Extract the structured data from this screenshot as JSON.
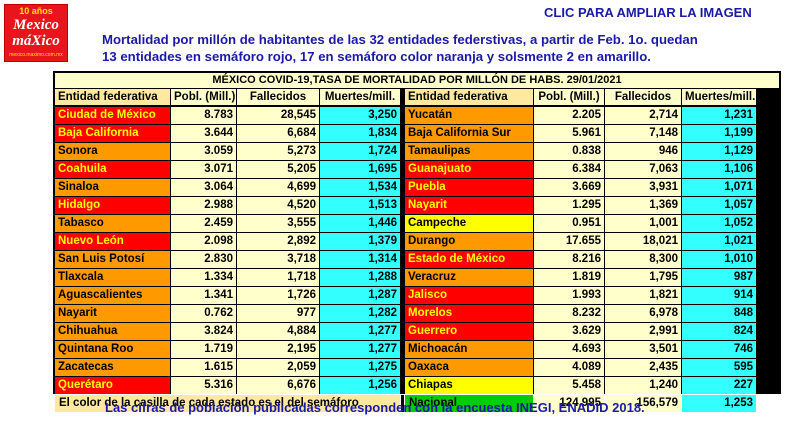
{
  "logo": {
    "years": "10 años",
    "line1": "Mexico",
    "line2": "máXico",
    "tagline": "mexico.maximo.com.mx"
  },
  "cta": "CLIC PARA AMPLIAR LA IMAGEN",
  "intro": [
    "Mortalidad por millón de habitantes de las 32 entidades federstivas, a partir de Feb. 1o. quedan",
    "13 entidades en semáforo rojo, 17 en semáforo color naranja y solsmente 2 en amarillo."
  ],
  "table": {
    "title": "MÉXICO COVID-19,TASA DE MORTALIDAD POR MILLÓN DE HABS.    29/01/2021",
    "headers": [
      "Entidad federativa",
      "Pobl. (Mill.)",
      "Fallecidos",
      "Muertes/mill."
    ],
    "left": [
      {
        "name": "Ciudad de México",
        "pop": "8.783",
        "deaths": "28,545",
        "rate": "3,250",
        "light": "red"
      },
      {
        "name": "Baja California",
        "pop": "3.644",
        "deaths": "6,684",
        "rate": "1,834",
        "light": "red"
      },
      {
        "name": "Sonora",
        "pop": "3.059",
        "deaths": "5,273",
        "rate": "1,724",
        "light": "orange"
      },
      {
        "name": "Coahuila",
        "pop": "3.071",
        "deaths": "5,205",
        "rate": "1,695",
        "light": "red"
      },
      {
        "name": "Sinaloa",
        "pop": "3.064",
        "deaths": "4,699",
        "rate": "1,534",
        "light": "orange"
      },
      {
        "name": "Hidalgo",
        "pop": "2.988",
        "deaths": "4,520",
        "rate": "1,513",
        "light": "red"
      },
      {
        "name": "Tabasco",
        "pop": "2.459",
        "deaths": "3,555",
        "rate": "1,446",
        "light": "orange"
      },
      {
        "name": "Nuevo León",
        "pop": "2.098",
        "deaths": "2,892",
        "rate": "1,379",
        "light": "red"
      },
      {
        "name": "San Luis Potosí",
        "pop": "2.830",
        "deaths": "3,718",
        "rate": "1,314",
        "light": "orange"
      },
      {
        "name": "Tlaxcala",
        "pop": "1.334",
        "deaths": "1,718",
        "rate": "1,288",
        "light": "orange"
      },
      {
        "name": "Aguascalientes",
        "pop": "1.341",
        "deaths": "1,726",
        "rate": "1,287",
        "light": "orange"
      },
      {
        "name": "Nayarit",
        "pop": "0.762",
        "deaths": "977",
        "rate": "1,282",
        "light": "orange"
      },
      {
        "name": "Chihuahua",
        "pop": "3.824",
        "deaths": "4,884",
        "rate": "1,277",
        "light": "orange"
      },
      {
        "name": "Quintana Roo",
        "pop": "1.719",
        "deaths": "2,195",
        "rate": "1,277",
        "light": "orange"
      },
      {
        "name": "Zacatecas",
        "pop": "1.615",
        "deaths": "2,059",
        "rate": "1,275",
        "light": "orange"
      },
      {
        "name": "Querétaro",
        "pop": "5.316",
        "deaths": "6,676",
        "rate": "1,256",
        "light": "red"
      }
    ],
    "right": [
      {
        "name": "Yucatán",
        "pop": "2.205",
        "deaths": "2,714",
        "rate": "1,231",
        "light": "orange"
      },
      {
        "name": "Baja California Sur",
        "pop": "5.961",
        "deaths": "7,148",
        "rate": "1,199",
        "light": "orange"
      },
      {
        "name": "Tamaulipas",
        "pop": "0.838",
        "deaths": "946",
        "rate": "1,129",
        "light": "orange"
      },
      {
        "name": "Guanajuato",
        "pop": "6.384",
        "deaths": "7,063",
        "rate": "1,106",
        "light": "red"
      },
      {
        "name": "Puebla",
        "pop": "3.669",
        "deaths": "3,931",
        "rate": "1,071",
        "light": "red"
      },
      {
        "name": "Nayarit",
        "pop": "1.295",
        "deaths": "1,369",
        "rate": "1,057",
        "light": "red"
      },
      {
        "name": "Campeche",
        "pop": "0.951",
        "deaths": "1,001",
        "rate": "1,052",
        "light": "yellow"
      },
      {
        "name": "Durango",
        "pop": "17.655",
        "deaths": "18,021",
        "rate": "1,021",
        "light": "orange"
      },
      {
        "name": "Estado de México",
        "pop": "8.216",
        "deaths": "8,300",
        "rate": "1,010",
        "light": "red"
      },
      {
        "name": "Veracruz",
        "pop": "1.819",
        "deaths": "1,795",
        "rate": "987",
        "light": "orange"
      },
      {
        "name": "Jalisco",
        "pop": "1.993",
        "deaths": "1,821",
        "rate": "914",
        "light": "red"
      },
      {
        "name": "Morelos",
        "pop": "8.232",
        "deaths": "6,978",
        "rate": "848",
        "light": "red"
      },
      {
        "name": "Guerrero",
        "pop": "3.629",
        "deaths": "2,991",
        "rate": "824",
        "light": "red"
      },
      {
        "name": "Michoacán",
        "pop": "4.693",
        "deaths": "3,501",
        "rate": "746",
        "light": "orange"
      },
      {
        "name": "Oaxaca",
        "pop": "4.089",
        "deaths": "2,435",
        "rate": "595",
        "light": "orange"
      },
      {
        "name": "Chiapas",
        "pop": "5.458",
        "deaths": "1,240",
        "rate": "227",
        "light": "yellow"
      }
    ],
    "footer": {
      "note": "El color de la casilla de cada estado es el del semáforo",
      "national_label": "Nacional",
      "national_pop": "124.995",
      "national_deaths": "156,579",
      "national_rate": "1,253"
    }
  },
  "bottom_note": "Las cifras de población publicadas corresponden con la encuesta INEGI, ENADID 2018.",
  "colors": {
    "red": "#ff0000",
    "orange": "#ff9900",
    "yellow": "#ffff00",
    "green": "#00cc00",
    "rate_cell": "#33ffff",
    "number_cell": "#ffffcc",
    "text_blue": "#1a1aa6"
  }
}
